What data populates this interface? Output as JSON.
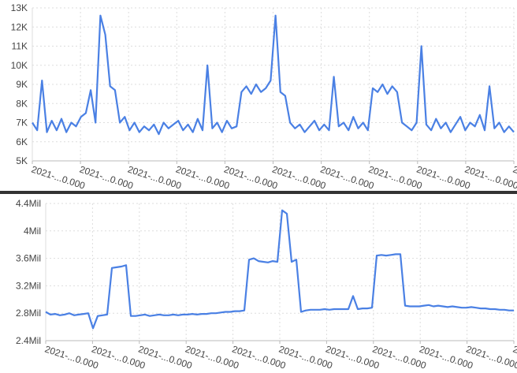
{
  "chart_data": [
    {
      "type": "line",
      "title": "",
      "xlabel": "",
      "ylabel": "",
      "ylim": [
        5000,
        13000
      ],
      "yticks": [
        "5K",
        "6K",
        "7K",
        "8K",
        "9K",
        "10K",
        "11K",
        "12K",
        "13K"
      ],
      "xticks": [
        "2021-...0.000",
        "2021-...0.000",
        "2021-...0.000",
        "2021-...0.000",
        "2021-...0.000",
        "2021-...0.000",
        "2021-...0.000",
        "2021-...0.000",
        "2021-...0.000",
        "2021-...0.000",
        "2021-...0.000"
      ],
      "grid": true,
      "line_color": "#4a80e4",
      "values": [
        7000,
        6600,
        9200,
        6500,
        7100,
        6600,
        7200,
        6500,
        7000,
        6800,
        7300,
        7500,
        8700,
        7000,
        12600,
        11600,
        8900,
        8700,
        7000,
        7300,
        6600,
        7000,
        6500,
        6800,
        6600,
        6900,
        6400,
        7000,
        6700,
        6900,
        7100,
        6600,
        6900,
        6500,
        7200,
        6600,
        10000,
        6700,
        7000,
        6500,
        7100,
        6700,
        6800,
        8600,
        8900,
        8500,
        9000,
        8600,
        8800,
        9200,
        12600,
        8600,
        8400,
        7000,
        6700,
        6900,
        6500,
        6800,
        7100,
        6600,
        6900,
        6600,
        9400,
        6800,
        7000,
        6600,
        7300,
        6700,
        7000,
        6600,
        8800,
        8600,
        9000,
        8500,
        8900,
        8600,
        7000,
        6800,
        6600,
        7000,
        11000,
        6900,
        6600,
        7200,
        6700,
        7000,
        6500,
        6900,
        7300,
        6600,
        7000,
        6800,
        7400,
        6600,
        8900,
        6700,
        7000,
        6500,
        6800,
        6500
      ]
    },
    {
      "type": "line",
      "title": "",
      "xlabel": "",
      "ylabel": "",
      "ylim": [
        2400000,
        4400000
      ],
      "yticks": [
        "2.4Mil",
        "2.8Mil",
        "3.2Mil",
        "3.6Mil",
        "4Mil",
        "4.4Mil"
      ],
      "xticks": [
        "2021-...0.000",
        "2021-...0.000",
        "2021-...0.000",
        "2021-...0.000",
        "2021-...0.000",
        "2021-...0.000",
        "2021-...0.000",
        "2021-...0.000",
        "2021-...0.000",
        "2021-...0.000",
        "2021-...0.000"
      ],
      "grid": true,
      "line_color": "#4a80e4",
      "values": [
        2820000,
        2780000,
        2790000,
        2770000,
        2780000,
        2800000,
        2770000,
        2780000,
        2790000,
        2800000,
        2580000,
        2760000,
        2770000,
        2780000,
        3460000,
        3470000,
        3480000,
        3500000,
        2760000,
        2760000,
        2770000,
        2780000,
        2760000,
        2770000,
        2780000,
        2770000,
        2770000,
        2780000,
        2770000,
        2780000,
        2780000,
        2790000,
        2780000,
        2790000,
        2790000,
        2800000,
        2800000,
        2810000,
        2820000,
        2820000,
        2830000,
        2830000,
        2840000,
        3580000,
        3600000,
        3560000,
        3550000,
        3540000,
        3560000,
        3550000,
        4300000,
        4250000,
        3550000,
        3580000,
        2820000,
        2840000,
        2850000,
        2850000,
        2850000,
        2860000,
        2850000,
        2860000,
        2860000,
        2860000,
        2860000,
        3050000,
        2860000,
        2870000,
        2870000,
        2880000,
        3640000,
        3650000,
        3640000,
        3650000,
        3660000,
        3660000,
        2910000,
        2900000,
        2900000,
        2900000,
        2910000,
        2920000,
        2900000,
        2910000,
        2900000,
        2890000,
        2900000,
        2890000,
        2880000,
        2880000,
        2890000,
        2880000,
        2870000,
        2870000,
        2860000,
        2860000,
        2850000,
        2850000,
        2840000,
        2840000
      ]
    }
  ]
}
